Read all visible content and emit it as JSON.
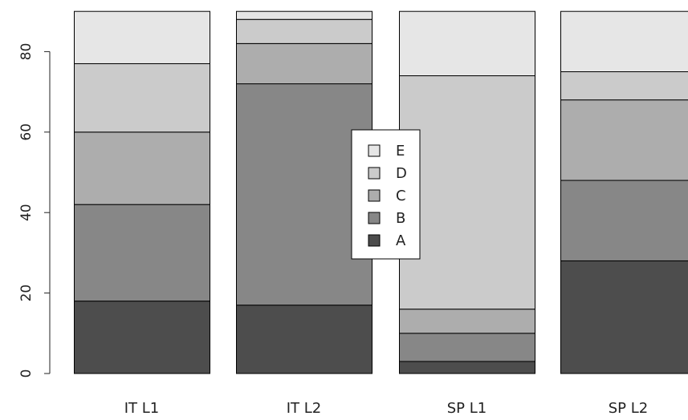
{
  "chart_data": {
    "type": "bar",
    "stacked": true,
    "categories": [
      "IT L1",
      "IT L2",
      "SP L1",
      "SP L2"
    ],
    "series": [
      {
        "name": "A",
        "values": [
          18,
          17,
          3,
          28
        ],
        "color": "#4d4d4d"
      },
      {
        "name": "B",
        "values": [
          24,
          55,
          7,
          20
        ],
        "color": "#878787"
      },
      {
        "name": "C",
        "values": [
          18,
          10,
          6,
          20
        ],
        "color": "#adadad"
      },
      {
        "name": "D",
        "values": [
          17,
          6,
          58,
          7
        ],
        "color": "#cbcbcb"
      },
      {
        "name": "E",
        "values": [
          13,
          2,
          16,
          15
        ],
        "color": "#e6e6e6"
      }
    ],
    "ylim": [
      0,
      90
    ],
    "yticks": [
      0,
      20,
      40,
      60,
      80
    ],
    "legend": {
      "position": "center",
      "order": [
        "E",
        "D",
        "C",
        "B",
        "A"
      ]
    },
    "grid": false
  }
}
